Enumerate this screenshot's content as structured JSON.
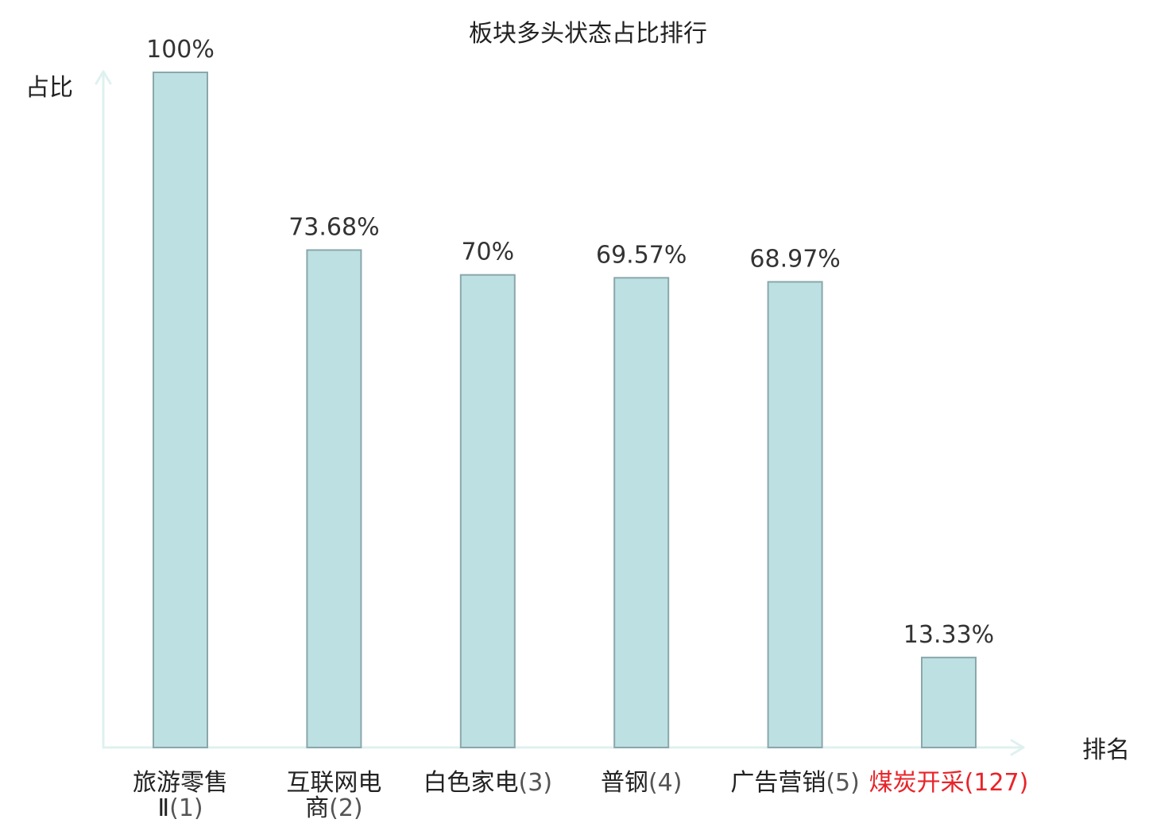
{
  "chart_data": {
    "type": "bar",
    "title": "板块多头状态占比排行",
    "ylabel": "占比",
    "xlabel": "排名",
    "ylim": [
      0,
      100
    ],
    "grid": false,
    "legend": "none",
    "bar_color": "#bde0e3",
    "bar_border_color": "#8aa7ab",
    "axis_color": "#dff1ef",
    "highlight_color": "#e8242a",
    "categories": [
      {
        "lines": [
          "旅游零售",
          "Ⅱ(1)"
        ],
        "highlight": false
      },
      {
        "lines": [
          "互联网电",
          "商(2)"
        ],
        "highlight": false
      },
      {
        "lines": [
          "白色家电(3)"
        ],
        "highlight": false
      },
      {
        "lines": [
          "普钢(4)"
        ],
        "highlight": false
      },
      {
        "lines": [
          "广告营销(5)"
        ],
        "highlight": false
      },
      {
        "lines": [
          "煤炭开采(127)"
        ],
        "highlight": true
      }
    ],
    "values": [
      100,
      73.68,
      70,
      69.57,
      68.97,
      13.33
    ],
    "value_labels": [
      "100%",
      "73.68%",
      "70%",
      "69.57%",
      "68.97%",
      "13.33%"
    ]
  }
}
